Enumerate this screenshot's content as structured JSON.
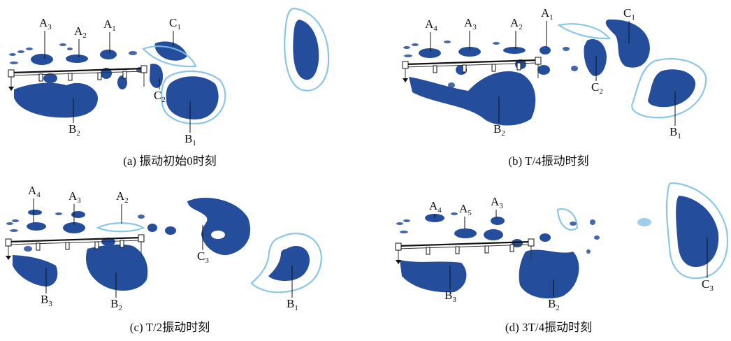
{
  "panels": [
    {
      "caption": "(a) 振动初始0时刻",
      "labels": [
        {
          "main": "A",
          "sub": "3"
        },
        {
          "main": "A",
          "sub": "2"
        },
        {
          "main": "A",
          "sub": "1"
        },
        {
          "main": "C",
          "sub": "1"
        },
        {
          "main": "C",
          "sub": "2"
        },
        {
          "main": "B",
          "sub": "2"
        },
        {
          "main": "B",
          "sub": "1"
        }
      ]
    },
    {
      "caption": "(b) T/4振动时刻",
      "labels": [
        {
          "main": "A",
          "sub": "4"
        },
        {
          "main": "A",
          "sub": "3"
        },
        {
          "main": "A",
          "sub": "2"
        },
        {
          "main": "A",
          "sub": "1"
        },
        {
          "main": "C",
          "sub": "1"
        },
        {
          "main": "C",
          "sub": "2"
        },
        {
          "main": "B",
          "sub": "2"
        },
        {
          "main": "B",
          "sub": "1"
        }
      ]
    },
    {
      "caption": "(c) T/2振动时刻",
      "labels": [
        {
          "main": "A",
          "sub": "4"
        },
        {
          "main": "A",
          "sub": "3"
        },
        {
          "main": "A",
          "sub": "2"
        },
        {
          "main": "C",
          "sub": "3"
        },
        {
          "main": "B",
          "sub": "3"
        },
        {
          "main": "B",
          "sub": "2"
        },
        {
          "main": "B",
          "sub": "1"
        }
      ]
    },
    {
      "caption": "(d) 3T/4振动时刻",
      "labels": [
        {
          "main": "A",
          "sub": "4"
        },
        {
          "main": "A",
          "sub": "5"
        },
        {
          "main": "A",
          "sub": "3"
        },
        {
          "main": "B",
          "sub": "3"
        },
        {
          "main": "B",
          "sub": "2"
        },
        {
          "main": "C",
          "sub": "3"
        }
      ]
    }
  ],
  "colors": {
    "vortex_core": "#244e9c",
    "vortex_edge": "#7ec0e6",
    "truss": "#111111"
  }
}
